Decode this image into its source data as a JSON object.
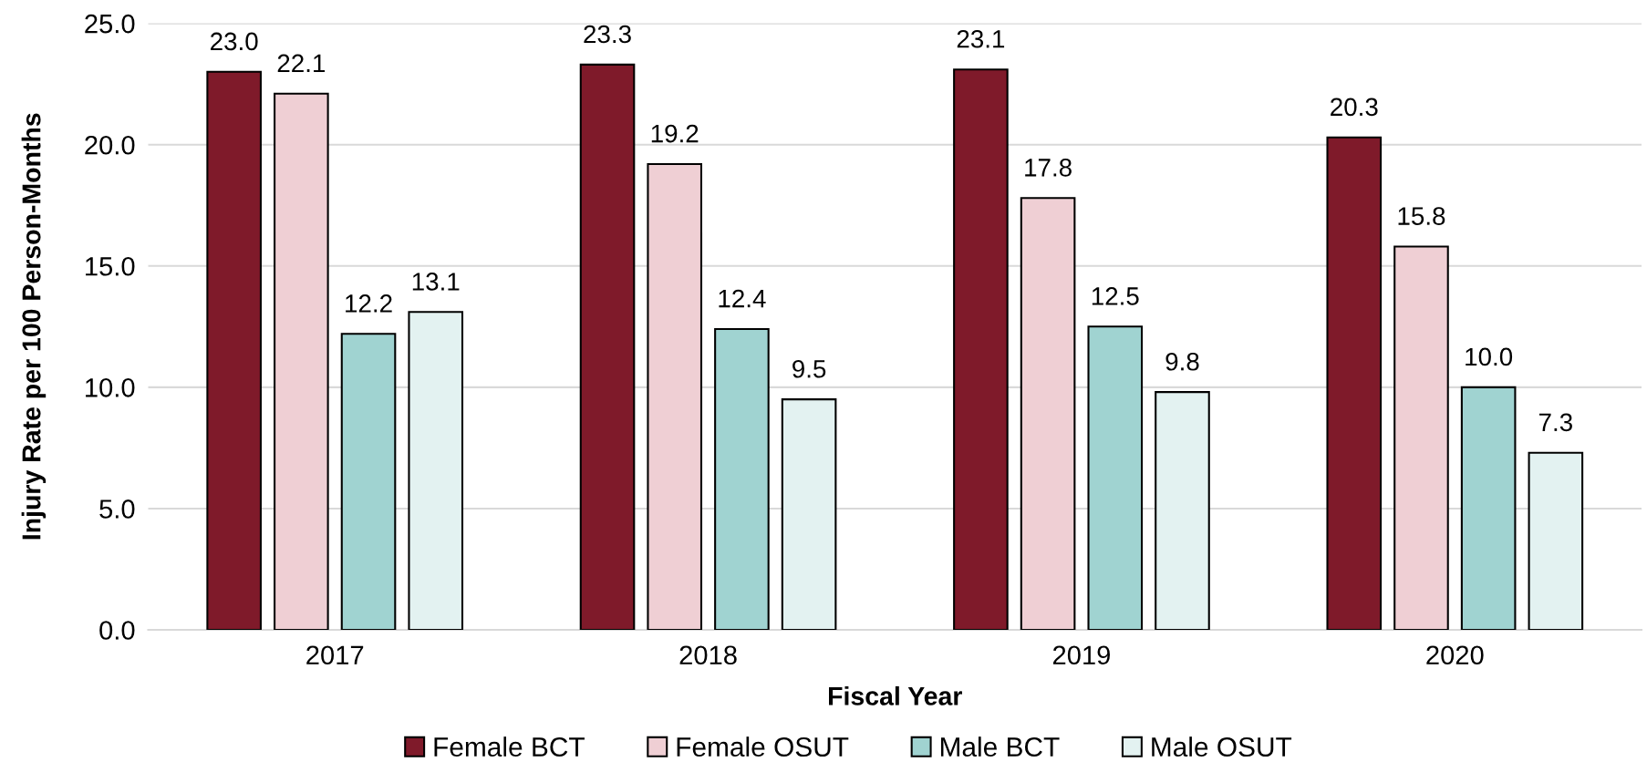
{
  "chart_data": {
    "type": "bar",
    "xlabel": "Fiscal Year",
    "ylabel": "Injury Rate per 100 Person-Months",
    "categories": [
      "2017",
      "2018",
      "2019",
      "2020"
    ],
    "series": [
      {
        "name": "Female BCT",
        "color": "#7f1a2a",
        "values": [
          23.0,
          23.3,
          23.1,
          20.3
        ],
        "value_labels": [
          "23.0",
          "23.3",
          "23.1",
          "20.3"
        ]
      },
      {
        "name": "Female OSUT",
        "color": "#efcfd4",
        "values": [
          22.1,
          19.2,
          17.8,
          15.8
        ],
        "value_labels": [
          "22.1",
          "19.2",
          "17.8",
          "15.8"
        ]
      },
      {
        "name": "Male BCT",
        "color": "#a0d3d1",
        "values": [
          12.2,
          12.4,
          12.5,
          10.0
        ],
        "value_labels": [
          "12.2",
          "12.4",
          "12.5",
          "10.0"
        ]
      },
      {
        "name": "Male OSUT",
        "color": "#e3f2f1",
        "values": [
          13.1,
          9.5,
          9.8,
          7.3
        ],
        "value_labels": [
          "13.1",
          "9.5",
          "9.8",
          "7.3"
        ]
      }
    ],
    "ylim": [
      0,
      25
    ],
    "yticks": [
      {
        "value": 0,
        "label": "0.0"
      },
      {
        "value": 5,
        "label": "5.0"
      },
      {
        "value": 10,
        "label": "10.0"
      },
      {
        "value": 15,
        "label": "15.0"
      },
      {
        "value": 20,
        "label": "20.0"
      },
      {
        "value": 25,
        "label": "25.0"
      }
    ],
    "grid": "y",
    "legend": "bottom"
  }
}
